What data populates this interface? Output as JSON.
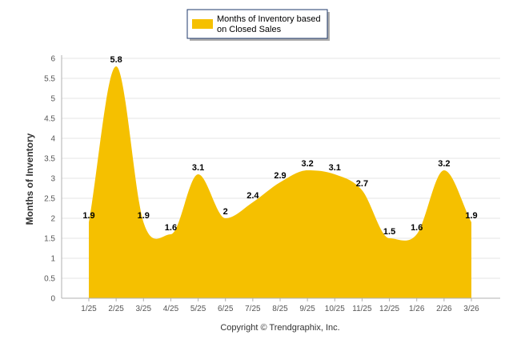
{
  "chart_data": {
    "type": "area",
    "title": "",
    "categories": [
      "1/25",
      "2/25",
      "3/25",
      "4/25",
      "5/25",
      "6/25",
      "7/25",
      "8/25",
      "9/25",
      "10/25",
      "11/25",
      "12/25",
      "1/26",
      "2/26",
      "3/26"
    ],
    "series": [
      {
        "name": "Months of Inventory based on Closed Sales",
        "color": "#F5C000",
        "values": [
          1.9,
          5.8,
          1.9,
          1.6,
          3.1,
          2,
          2.4,
          2.9,
          3.2,
          3.1,
          2.7,
          1.5,
          1.6,
          3.2,
          1.9
        ],
        "labels": [
          "1.9",
          "5.8",
          "1.9",
          "1.6",
          "3.1",
          "2",
          "2.4",
          "2.9",
          "3.2",
          "3.1",
          "2.7",
          "1.5",
          "1.6",
          "3.2",
          "1.9"
        ]
      }
    ],
    "legend": {
      "line1": "Months of Inventory based",
      "line2": "on Closed Sales",
      "position": "top-center"
    },
    "ylabel": "Months of Inventory",
    "xlabel": "",
    "ylim": [
      0,
      6
    ],
    "yticks": [
      "0",
      "0.5",
      "1",
      "1.5",
      "2",
      "2.5",
      "3",
      "3.5",
      "4",
      "4.5",
      "5",
      "5.5",
      "6"
    ],
    "grid": true
  },
  "footer": {
    "copyright": "Copyright © Trendgraphix, Inc."
  }
}
